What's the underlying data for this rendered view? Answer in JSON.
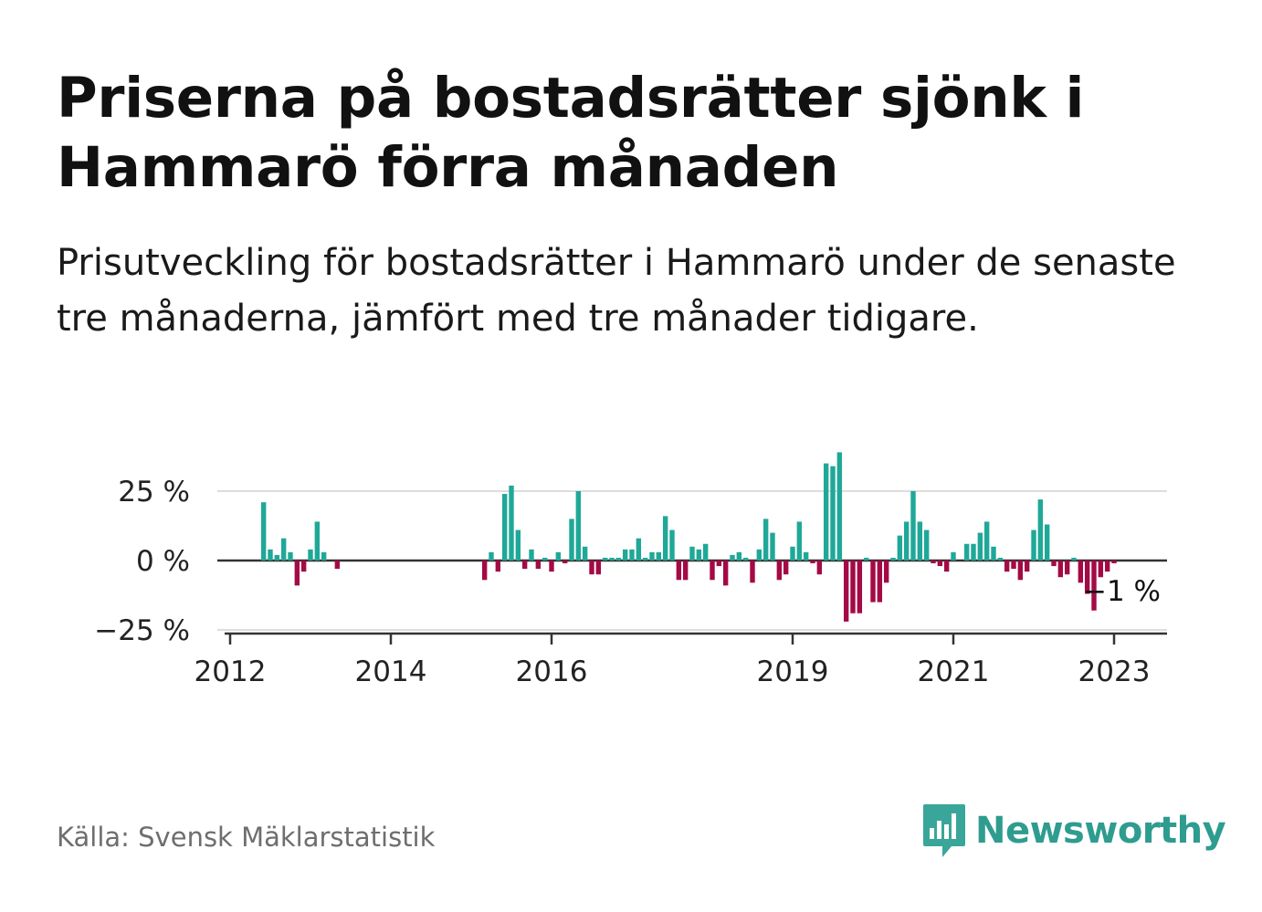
{
  "title": "Priserna på bostadsrätter sjönk i Hammarö förra månaden",
  "subtitle": "Prisutveckling för bostadsrätter i Hammarö under de senaste tre månaderna, jämfört med tre månader tidigare.",
  "source": "Källa: Svensk Mäklarstatistik",
  "brand": "Newsworthy",
  "colors": {
    "positive": "#1fa898",
    "negative": "#a40a45",
    "brand": "#2e9c8f",
    "grid": "#dddddd",
    "zero_line": "#333333"
  },
  "chart_data": {
    "type": "bar",
    "unit": "%",
    "ylim": [
      -25,
      40
    ],
    "y_ticks": [
      {
        "value": 25,
        "label": "25 %"
      },
      {
        "value": 0,
        "label": "0 %"
      },
      {
        "value": -25,
        "label": "−25 %"
      }
    ],
    "x_ticks": [
      {
        "value": 2012,
        "label": "2012"
      },
      {
        "value": 2014,
        "label": "2014"
      },
      {
        "value": 2016,
        "label": "2016"
      },
      {
        "value": 2019,
        "label": "2019"
      },
      {
        "value": 2021,
        "label": "2021"
      },
      {
        "value": 2023,
        "label": "2023"
      }
    ],
    "grid": true,
    "end_label": "−1 %",
    "x": [
      "2012-06",
      "2012-07",
      "2012-08",
      "2012-09",
      "2012-10",
      "2012-11",
      "2012-12",
      "2013-01",
      "2013-02",
      "2013-03",
      "2013-04",
      "2013-05",
      "2015-03",
      "2015-04",
      "2015-05",
      "2015-06",
      "2015-07",
      "2015-08",
      "2015-09",
      "2015-10",
      "2015-11",
      "2015-12",
      "2016-01",
      "2016-02",
      "2016-03",
      "2016-04",
      "2016-05",
      "2016-06",
      "2016-07",
      "2016-08",
      "2016-09",
      "2016-10",
      "2016-11",
      "2016-12",
      "2017-01",
      "2017-02",
      "2017-03",
      "2017-04",
      "2017-05",
      "2017-06",
      "2017-07",
      "2017-08",
      "2017-09",
      "2017-10",
      "2017-11",
      "2017-12",
      "2018-01",
      "2018-02",
      "2018-03",
      "2018-04",
      "2018-05",
      "2018-06",
      "2018-07",
      "2018-08",
      "2018-09",
      "2018-10",
      "2018-11",
      "2018-12",
      "2019-01",
      "2019-02",
      "2019-03",
      "2019-04",
      "2019-05",
      "2019-06",
      "2019-07",
      "2019-08",
      "2019-09",
      "2019-10",
      "2019-11",
      "2019-12",
      "2020-01",
      "2020-02",
      "2020-03",
      "2020-04",
      "2020-05",
      "2020-06",
      "2020-07",
      "2020-08",
      "2020-09",
      "2020-10",
      "2020-11",
      "2020-12",
      "2021-01",
      "2021-02",
      "2021-03",
      "2021-04",
      "2021-05",
      "2021-06",
      "2021-07",
      "2021-08",
      "2021-09",
      "2021-10",
      "2021-11",
      "2021-12",
      "2022-01",
      "2022-02",
      "2022-03",
      "2022-04",
      "2022-05",
      "2022-06",
      "2022-07",
      "2022-08",
      "2022-09",
      "2022-10",
      "2022-11",
      "2022-12",
      "2023-01"
    ],
    "values": [
      21,
      4,
      2,
      8,
      3,
      -9,
      -4,
      4,
      14,
      3,
      0,
      -3,
      -7,
      3,
      -4,
      24,
      27,
      11,
      -3,
      4,
      -3,
      1,
      -4,
      3,
      -1,
      15,
      25,
      5,
      -5,
      -5,
      1,
      1,
      1,
      4,
      4,
      8,
      1,
      3,
      3,
      16,
      11,
      -7,
      -7,
      5,
      4,
      6,
      -7,
      -2,
      -9,
      2,
      3,
      1,
      -8,
      4,
      15,
      10,
      -7,
      -5,
      5,
      14,
      3,
      -1,
      -5,
      35,
      34,
      39,
      -22,
      -19,
      -19,
      1,
      -15,
      -15,
      -8,
      1,
      9,
      14,
      25,
      14,
      11,
      -1,
      -2,
      -4,
      3,
      0,
      6,
      6,
      10,
      14,
      5,
      1,
      -4,
      -3,
      -7,
      -4,
      11,
      22,
      13,
      -2,
      -6,
      -5,
      1,
      -8,
      -12,
      -18,
      -6,
      -4,
      -1
    ]
  }
}
